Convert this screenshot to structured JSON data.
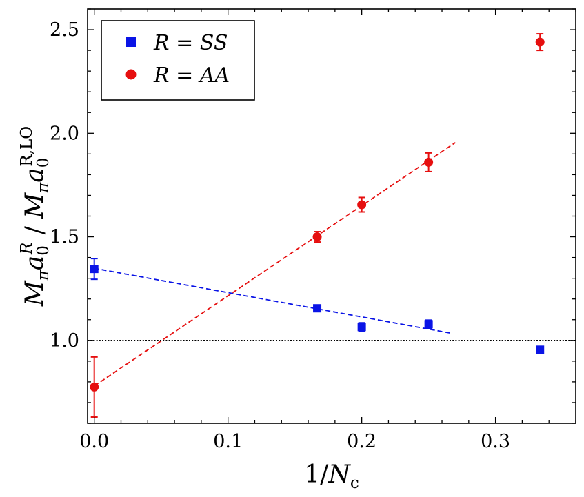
{
  "chart_data": {
    "type": "scatter",
    "xlabel": "1/N",
    "xlabel_sub": "c",
    "ylabel": "M",
    "ylabel_parts": {
      "left_main": "M",
      "left_sub_pi": "π",
      "left_a": "a",
      "left_sub_0": "0",
      "left_sup_R": "R",
      "divider": "/",
      "right_main": "M",
      "right_sub_pi": "π",
      "right_a": "a",
      "right_sub_0": "0",
      "right_sup": "R,LO"
    },
    "xlim": [
      -0.005,
      0.36
    ],
    "ylim": [
      0.6,
      2.6
    ],
    "x_ticks": [
      0.0,
      0.1,
      0.2,
      0.3
    ],
    "x_tick_labels": [
      "0.0",
      "0.1",
      "0.2",
      "0.3"
    ],
    "y_ticks": [
      1.0,
      1.5,
      2.0,
      2.5
    ],
    "y_tick_labels": [
      "1.0",
      "1.5",
      "2.0",
      "2.5"
    ],
    "reference_line": {
      "y": 1.0,
      "style": "dotted",
      "color": "#000000"
    },
    "series": [
      {
        "name": "R = SS",
        "legend_label": "R = SS",
        "marker": "square",
        "color": "#0a14e6",
        "points": [
          {
            "x": 0.0,
            "y": 1.345,
            "err": 0.05
          },
          {
            "x": 0.1667,
            "y": 1.155,
            "err": 0.012
          },
          {
            "x": 0.2,
            "y": 1.065,
            "err": 0.02
          },
          {
            "x": 0.25,
            "y": 1.078,
            "err": 0.02
          },
          {
            "x": 0.3333,
            "y": 0.955,
            "err": 0.0
          }
        ],
        "fit": {
          "x_start": 0.0,
          "x_end": 0.2667,
          "y_start": 1.348,
          "y_end": 1.035
        }
      },
      {
        "name": "R = AA",
        "legend_label": "R = AA",
        "marker": "circle",
        "color": "#e60f0f",
        "points": [
          {
            "x": 0.0,
            "y": 0.775,
            "err": 0.145
          },
          {
            "x": 0.1667,
            "y": 1.5,
            "err": 0.025
          },
          {
            "x": 0.2,
            "y": 1.655,
            "err": 0.035
          },
          {
            "x": 0.25,
            "y": 1.86,
            "err": 0.045
          },
          {
            "x": 0.3333,
            "y": 2.44,
            "err": 0.04
          }
        ],
        "fit": {
          "x_start": 0.0,
          "x_end": 0.27,
          "y_start": 0.78,
          "y_end": 1.955
        }
      }
    ],
    "legend": {
      "position": "top-left"
    }
  }
}
